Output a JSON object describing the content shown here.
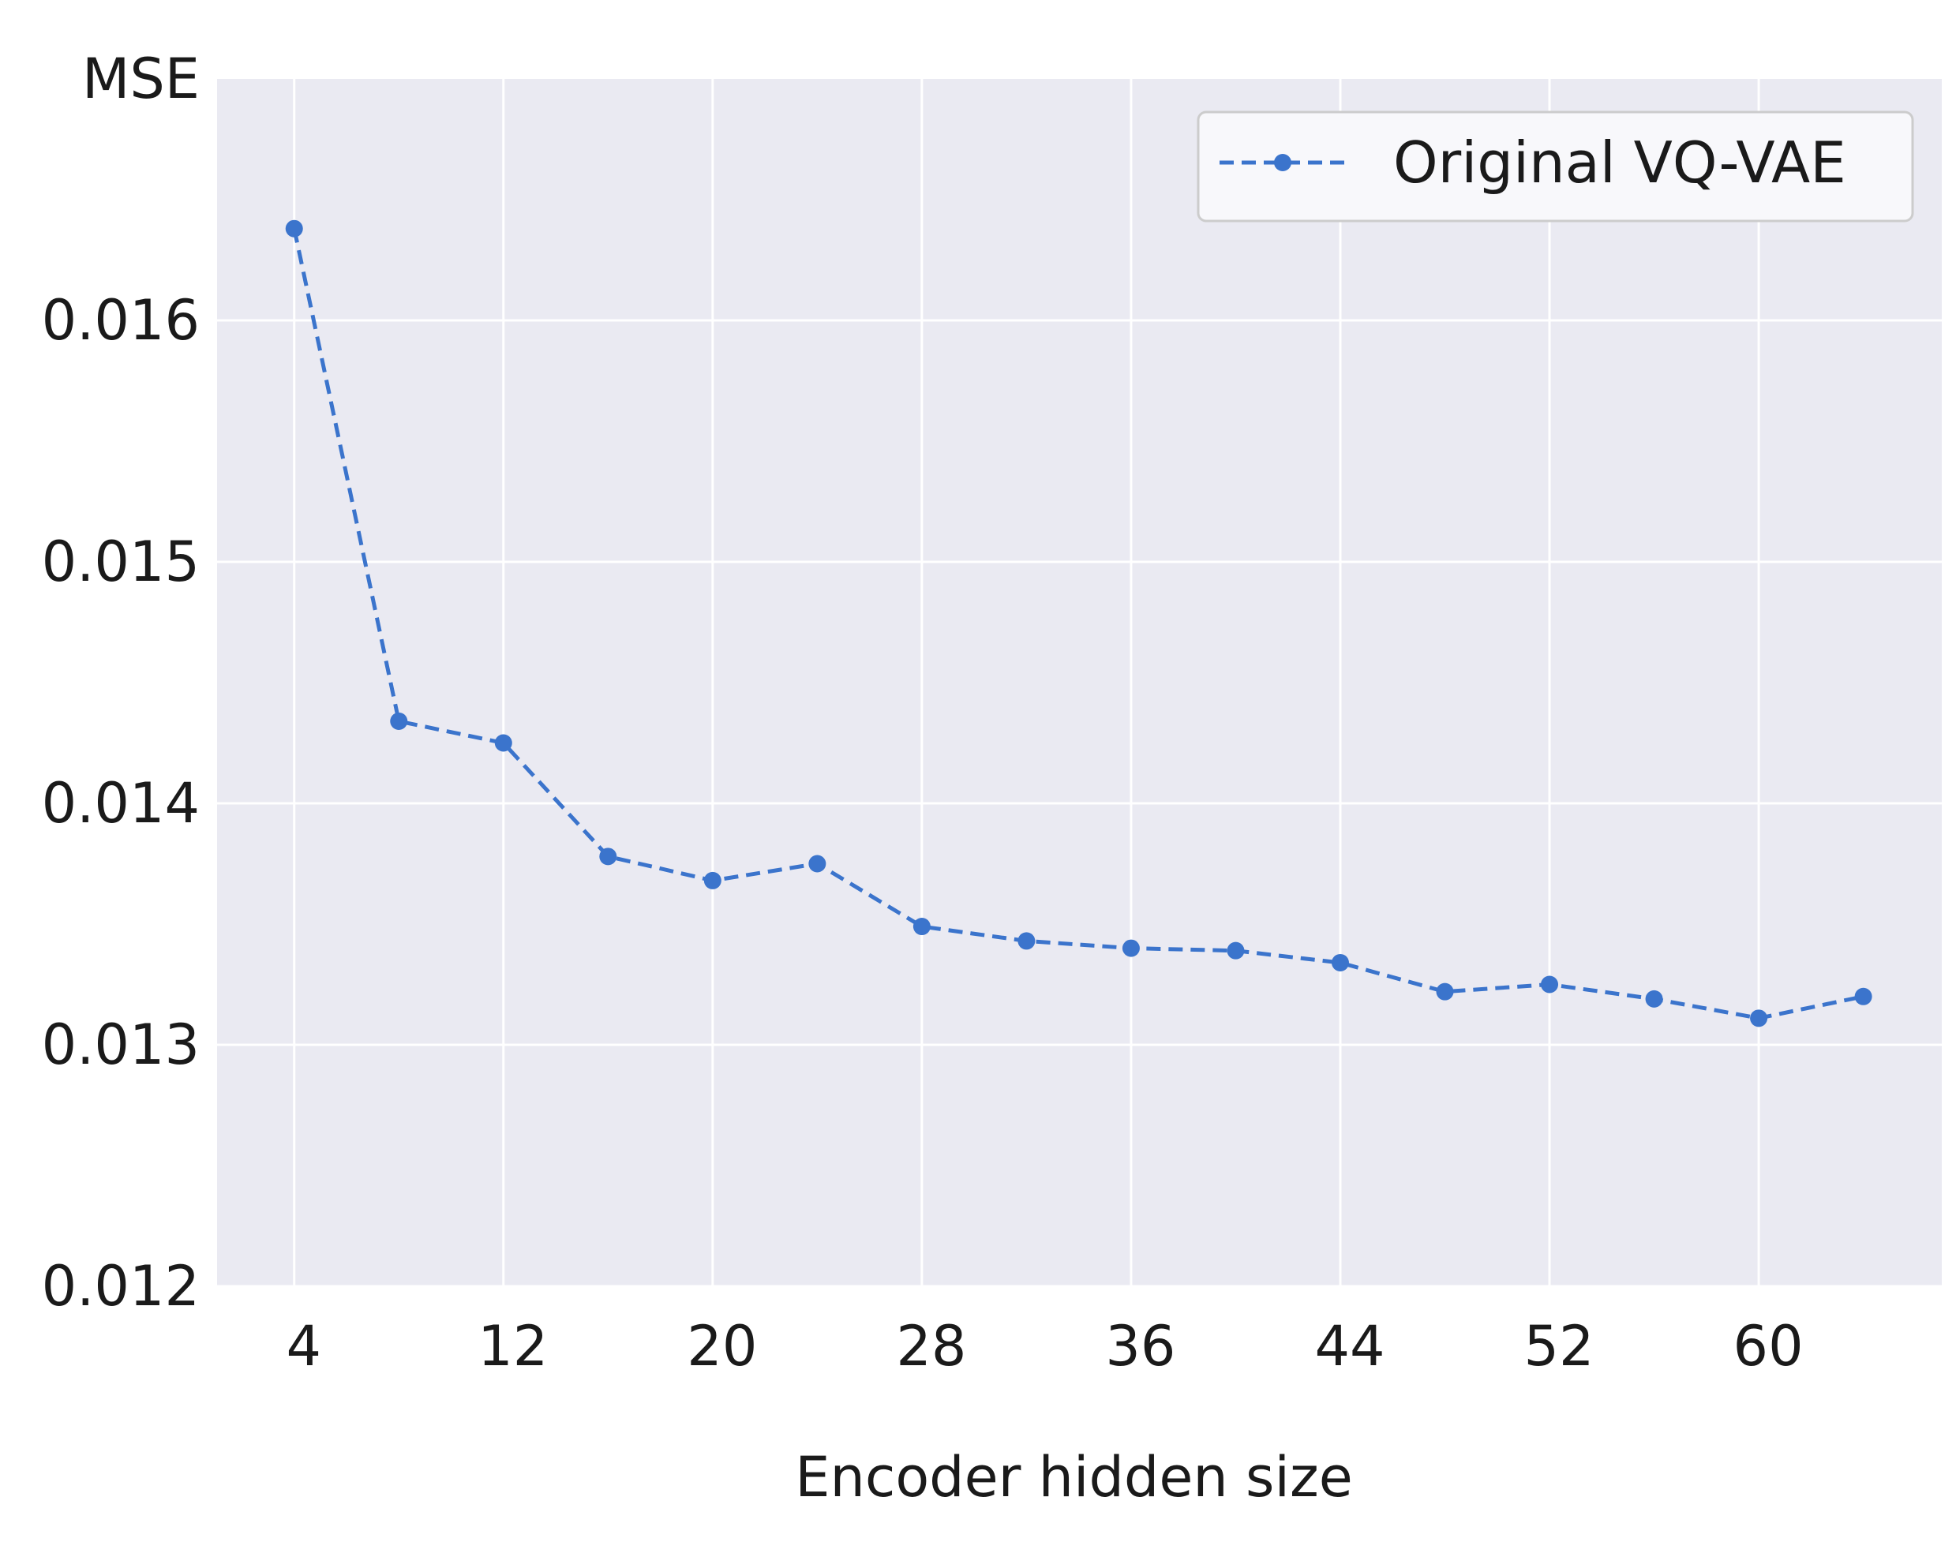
{
  "chart_data": {
    "type": "line",
    "title": "",
    "xlabel": "Encoder hidden size",
    "ylabel": "MSE",
    "x": [
      4,
      8,
      12,
      16,
      20,
      24,
      28,
      32,
      36,
      40,
      44,
      48,
      52,
      56,
      60,
      64
    ],
    "series": [
      {
        "name": "Original VQ-VAE",
        "color": "#3b74cc",
        "line_style": "dashed",
        "marker": "circle",
        "values": [
          0.01638,
          0.01434,
          0.01425,
          0.01378,
          0.01368,
          0.01375,
          0.01349,
          0.01343,
          0.0134,
          0.01339,
          0.01334,
          0.01322,
          0.01325,
          0.01319,
          0.01311,
          0.0132
        ]
      }
    ],
    "xticks": [
      4,
      12,
      20,
      28,
      36,
      44,
      52,
      60
    ],
    "xtick_labels": [
      "4",
      "12",
      "20",
      "28",
      "36",
      "44",
      "52",
      "60"
    ],
    "yticks": [
      0.012,
      0.013,
      0.014,
      0.015,
      0.016
    ],
    "ytick_labels": [
      "0.012",
      "0.013",
      "0.014",
      "0.015",
      "0.016"
    ],
    "xlim": [
      1.05,
      67.0
    ],
    "ylim": [
      0.012,
      0.017
    ],
    "grid": true,
    "legend_position": "top-right",
    "colors": {
      "plot_background": "#eaeaf2",
      "grid": "#ffffff",
      "legend_background": "#f8f8fb",
      "legend_border": "#cccccc"
    }
  }
}
